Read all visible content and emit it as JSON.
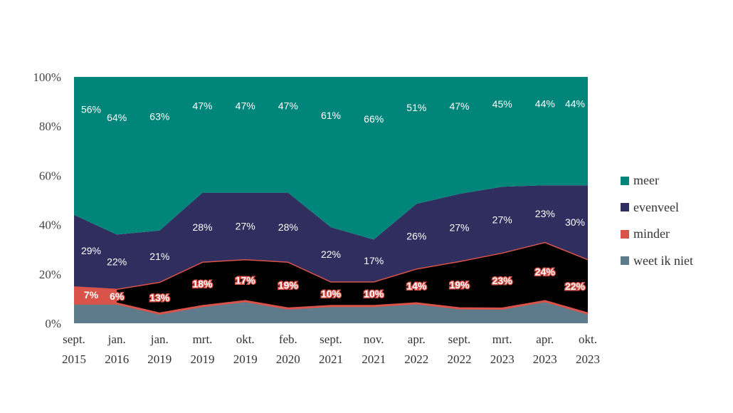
{
  "chart_data": {
    "type": "area",
    "stacked": true,
    "title": "",
    "xlabel": "",
    "ylabel": "",
    "ylim": [
      0,
      100
    ],
    "y_ticks": [
      "0%",
      "20%",
      "40%",
      "60%",
      "80%",
      "100%"
    ],
    "categories": [
      [
        "sept.",
        "2015"
      ],
      [
        "jan.",
        "2016"
      ],
      [
        "jan.",
        "2019"
      ],
      [
        "mrt.",
        "2019"
      ],
      [
        "okt.",
        "2019"
      ],
      [
        "feb.",
        "2020"
      ],
      [
        "sept.",
        "2021"
      ],
      [
        "nov.",
        "2021"
      ],
      [
        "apr.",
        "2022"
      ],
      [
        "sept.",
        "2022"
      ],
      [
        "mrt.",
        "2023"
      ],
      [
        "apr.",
        "2023"
      ],
      [
        "okt.",
        "2023"
      ]
    ],
    "series": [
      {
        "name": "weet ik niet",
        "color": "#5e7b8c",
        "values": [
          8,
          8,
          4,
          7,
          9,
          6,
          7,
          7,
          8,
          6,
          6,
          9,
          4
        ]
      },
      {
        "name": "minder",
        "color": "#d9534a",
        "values": [
          7,
          6,
          13,
          18,
          17,
          19,
          10,
          10,
          14,
          19,
          23,
          24,
          22
        ]
      },
      {
        "name": "evenveel",
        "color": "#2f2e5e",
        "values": [
          29,
          22,
          21,
          28,
          27,
          28,
          22,
          17,
          26,
          27,
          27,
          23,
          30
        ]
      },
      {
        "name": "meer",
        "color": "#00857a",
        "values": [
          56,
          64,
          63,
          47,
          47,
          47,
          61,
          66,
          51,
          47,
          45,
          44,
          44
        ]
      }
    ],
    "data_labels": {
      "meer": [
        "56%",
        "64%",
        "63%",
        "47%",
        "47%",
        "47%",
        "61%",
        "66%",
        "51%",
        "47%",
        "45%",
        "44%",
        "44%"
      ],
      "evenveel": [
        "29%",
        "22%",
        "21%",
        "28%",
        "27%",
        "28%",
        "22%",
        "17%",
        "26%",
        "27%",
        "27%",
        "23%",
        "30%"
      ],
      "minder": [
        "7%",
        "6%",
        "13%",
        "18%",
        "17%",
        "19%",
        "10%",
        "10%",
        "14%",
        "19%",
        "23%",
        "24%",
        "22%"
      ]
    },
    "minder_fill_note": "black",
    "legend_order": [
      "meer",
      "evenveel",
      "minder",
      "weet ik niet"
    ],
    "legend_position": "right"
  }
}
